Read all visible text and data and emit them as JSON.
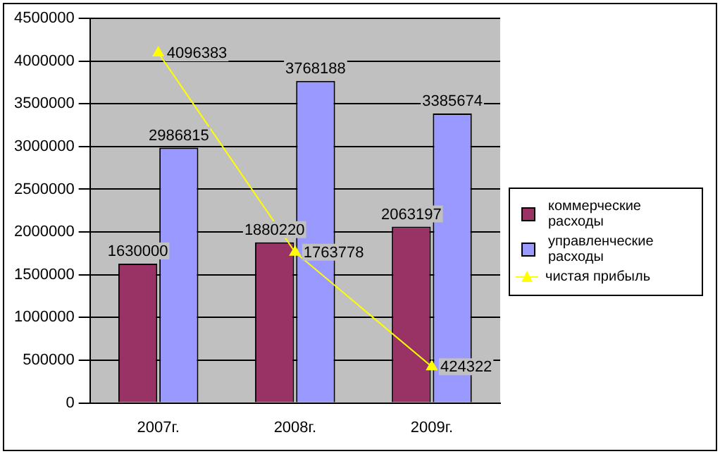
{
  "chart_data": {
    "type": "bar",
    "categories": [
      "2007г.",
      "2008г.",
      "2009г."
    ],
    "series": [
      {
        "name": "коммерческие расходы",
        "color": "#993366",
        "values": [
          1630000,
          1880220,
          2063197
        ]
      },
      {
        "name": "управленческие расходы",
        "color": "#9999ff",
        "values": [
          2986815,
          3768188,
          3385674
        ]
      },
      {
        "name": "чистая прибыль",
        "color": "#ffff00",
        "type": "line",
        "marker": "triangle",
        "values": [
          4096383,
          1763778,
          424322
        ]
      }
    ],
    "ylim": [
      0,
      4500000
    ],
    "yticks": [
      0,
      500000,
      1000000,
      1500000,
      2000000,
      2500000,
      3000000,
      3500000,
      4000000,
      4500000
    ],
    "grid": "y",
    "legend": "right",
    "data_labels": true
  }
}
